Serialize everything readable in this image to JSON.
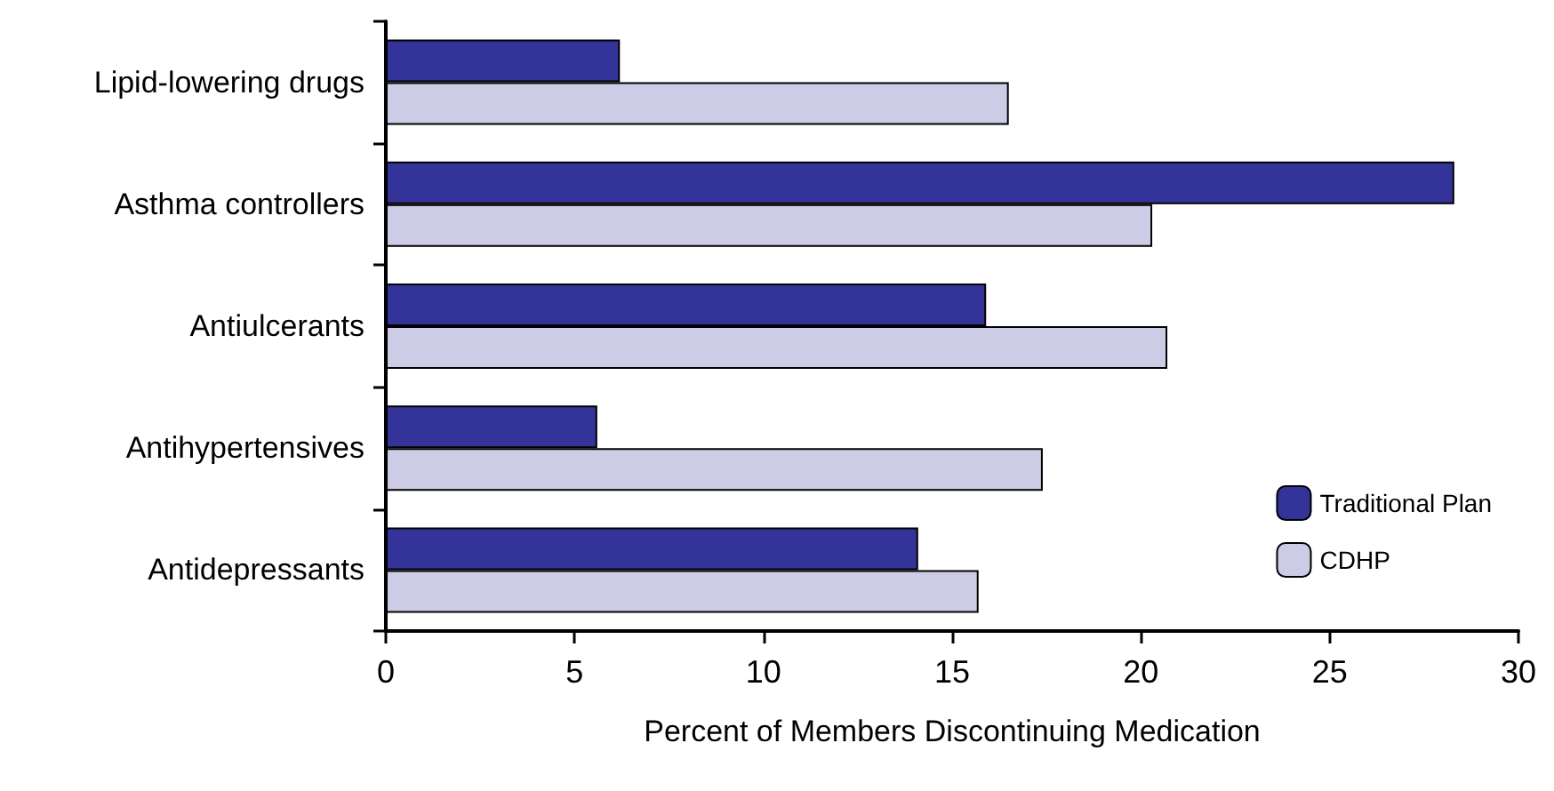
{
  "chart_data": {
    "type": "bar",
    "orientation": "horizontal",
    "xlabel": "Percent of Members Discontinuing Medication",
    "categories": [
      "Lipid-lowering drugs",
      "Asthma controllers",
      "Antiulcerants",
      "Antihypertensives",
      "Antidepressants"
    ],
    "series": [
      {
        "name": "Traditional Plan",
        "color": "#333399",
        "values": [
          6.2,
          28.3,
          15.9,
          5.6,
          14.1
        ]
      },
      {
        "name": "CDHP",
        "color": "#cccce6",
        "values": [
          16.5,
          20.3,
          20.7,
          17.4,
          15.7
        ]
      }
    ],
    "xlim": [
      0,
      30
    ],
    "xticks": [
      0,
      5,
      10,
      15,
      20,
      25,
      30
    ],
    "grid": false,
    "legend": "right"
  }
}
